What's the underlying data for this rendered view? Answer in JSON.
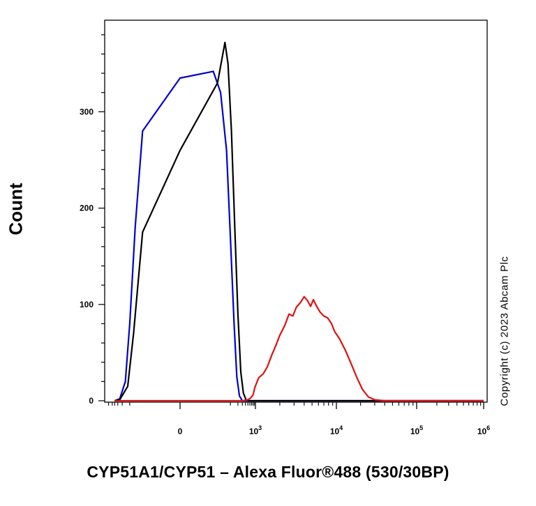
{
  "chart_data": {
    "type": "line",
    "xlabel": "CYP51A1/CYP51 – Alexa Fluor®488 (530/30BP)",
    "ylabel": "Count",
    "ylim": [
      0,
      400
    ],
    "yticks": [
      0,
      100,
      200,
      300
    ],
    "x_scale": "biexponential",
    "xticks": [
      {
        "value": 0,
        "label": "0"
      },
      {
        "value": 1000,
        "label": "10",
        "sup": "3"
      },
      {
        "value": 10000,
        "label": "10",
        "sup": "4"
      },
      {
        "value": 100000,
        "label": "10",
        "sup": "5"
      },
      {
        "value": 1000000,
        "label": "10",
        "sup": "6"
      }
    ],
    "grid": false,
    "legend": "none",
    "series": [
      {
        "color": "#0000cc",
        "points": [
          [
            -400,
            0
          ],
          [
            -250,
            2
          ],
          [
            -150,
            20
          ],
          [
            -100,
            80
          ],
          [
            -60,
            180
          ],
          [
            -30,
            280
          ],
          [
            0,
            335
          ],
          [
            20,
            342
          ],
          [
            40,
            320
          ],
          [
            70,
            260
          ],
          [
            100,
            170
          ],
          [
            140,
            80
          ],
          [
            180,
            25
          ],
          [
            230,
            5
          ],
          [
            300,
            0
          ],
          [
            1000,
            0
          ],
          [
            10000,
            0
          ],
          [
            1000000,
            0
          ]
        ]
      },
      {
        "color": "#000000",
        "points": [
          [
            -400,
            0
          ],
          [
            -250,
            1
          ],
          [
            -120,
            15
          ],
          [
            -70,
            70
          ],
          [
            -30,
            175
          ],
          [
            0,
            260
          ],
          [
            30,
            330
          ],
          [
            60,
            372
          ],
          [
            80,
            350
          ],
          [
            110,
            280
          ],
          [
            150,
            180
          ],
          [
            200,
            90
          ],
          [
            260,
            30
          ],
          [
            330,
            8
          ],
          [
            420,
            1
          ],
          [
            520,
            0
          ],
          [
            1000,
            0
          ],
          [
            10000,
            0
          ],
          [
            1000000,
            0
          ]
        ]
      },
      {
        "color": "#dd1111",
        "points": [
          [
            -400,
            0
          ],
          [
            300,
            0
          ],
          [
            500,
            1
          ],
          [
            650,
            3
          ],
          [
            800,
            6
          ],
          [
            950,
            14
          ],
          [
            1100,
            24
          ],
          [
            1250,
            28
          ],
          [
            1400,
            35
          ],
          [
            1600,
            48
          ],
          [
            1800,
            58
          ],
          [
            2000,
            68
          ],
          [
            2300,
            78
          ],
          [
            2600,
            90
          ],
          [
            2900,
            88
          ],
          [
            3200,
            97
          ],
          [
            3600,
            102
          ],
          [
            4000,
            108
          ],
          [
            4400,
            104
          ],
          [
            4800,
            98
          ],
          [
            5200,
            105
          ],
          [
            5700,
            98
          ],
          [
            6300,
            92
          ],
          [
            7000,
            88
          ],
          [
            7800,
            86
          ],
          [
            8700,
            80
          ],
          [
            9500,
            72
          ],
          [
            11000,
            64
          ],
          [
            13000,
            52
          ],
          [
            15000,
            40
          ],
          [
            18000,
            24
          ],
          [
            21000,
            12
          ],
          [
            25000,
            4
          ],
          [
            30000,
            1
          ],
          [
            40000,
            0
          ],
          [
            1000000,
            0
          ]
        ]
      }
    ]
  },
  "copyright": "Copyright (c) 2023 Abcam Plc"
}
